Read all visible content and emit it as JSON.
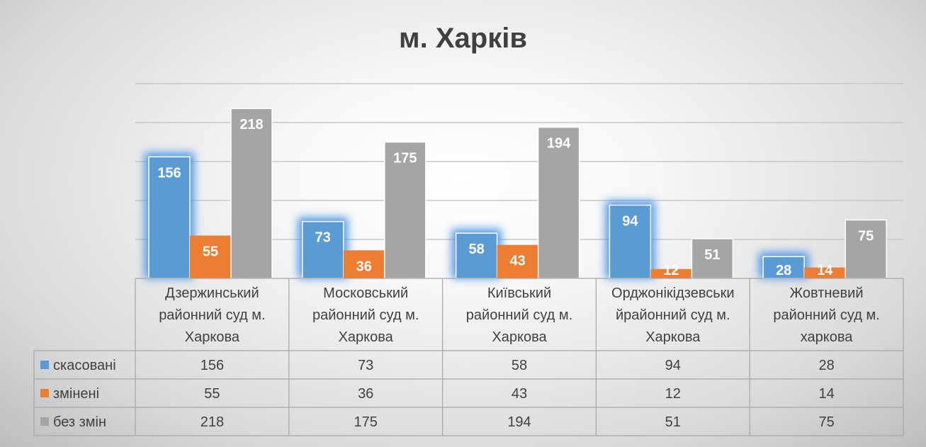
{
  "chart_data": {
    "type": "bar",
    "title": "м. Харків",
    "categories": [
      [
        "Дзержинський",
        "районний суд м.",
        "Харкова"
      ],
      [
        "Московський",
        "районний суд м.",
        "Харкова"
      ],
      [
        "Київський",
        "районний суд м.",
        "Харкова"
      ],
      [
        "Орджонікідзевськи",
        "йрайонний суд м.",
        "Харкова"
      ],
      [
        "Жовтневий",
        "районний суд м.",
        "харкова"
      ]
    ],
    "series": [
      {
        "name": "скасовані",
        "color": "#5b9bd5",
        "values": [
          156,
          73,
          58,
          94,
          28
        ]
      },
      {
        "name": "змінені",
        "color": "#ed7d31",
        "values": [
          55,
          36,
          43,
          12,
          14
        ]
      },
      {
        "name": "без змін",
        "color": "#a5a5a5",
        "values": [
          218,
          175,
          194,
          51,
          75
        ]
      }
    ],
    "ylim": [
      0,
      250
    ],
    "gridlines": true,
    "data_labels": true,
    "legend": "data-table",
    "data_table": true
  }
}
